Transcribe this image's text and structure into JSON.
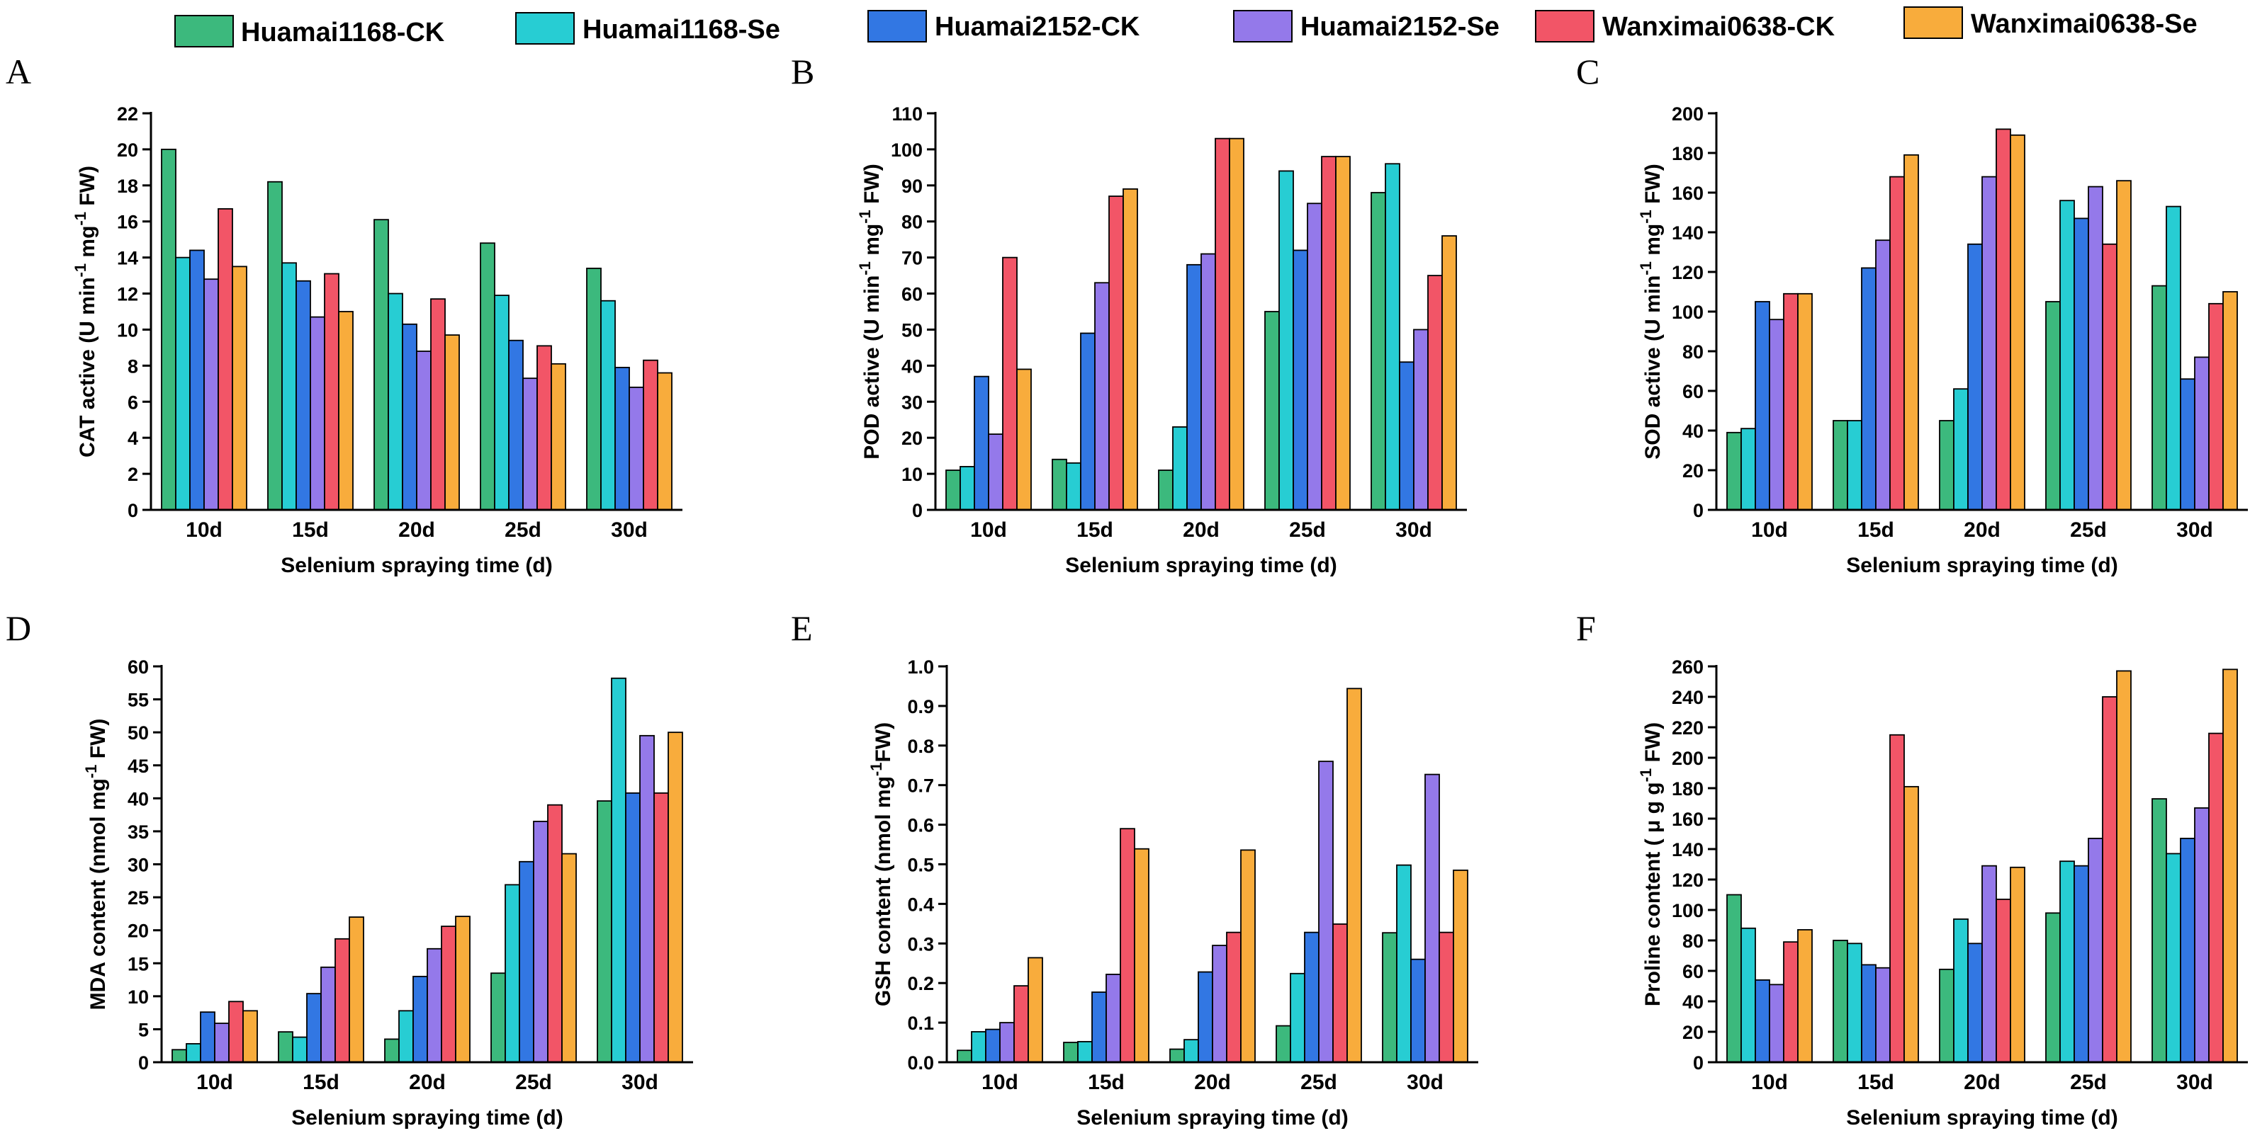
{
  "legend": [
    {
      "name": "Huamai1168-CK",
      "color": "#3cb97d"
    },
    {
      "name": "Huamai1168-Se",
      "color": "#27cdd3"
    },
    {
      "name": "Huamai2152-CK",
      "color": "#3277e3"
    },
    {
      "name": "Huamai2152-Se",
      "color": "#9479ea"
    },
    {
      "name": "Wanximai0638-CK",
      "color": "#f25567"
    },
    {
      "name": "Wanximai0638-Se",
      "color": "#f8ac3c"
    }
  ],
  "chart_data": [
    {
      "panel": "A",
      "type": "bar",
      "categories": [
        "10d",
        "15d",
        "20d",
        "25d",
        "30d"
      ],
      "xlabel": "Selenium spraying time (d)",
      "ylabel": {
        "pre": "CAT active (U min",
        "sup1": "-1",
        "mid": " mg",
        "sup2": "-1",
        "post": " FW)"
      },
      "ylim": [
        0,
        22
      ],
      "ystep": 2,
      "yticks": [
        "0",
        "2",
        "4",
        "6",
        "8",
        "10",
        "12",
        "14",
        "16",
        "18",
        "20",
        "22"
      ],
      "series": [
        {
          "name": "Huamai1168-CK",
          "values": [
            20.0,
            18.2,
            16.1,
            14.8,
            13.4
          ]
        },
        {
          "name": "Huamai1168-Se",
          "values": [
            14.0,
            13.7,
            12.0,
            11.9,
            11.6
          ]
        },
        {
          "name": "Huamai2152-CK",
          "values": [
            14.4,
            12.7,
            10.3,
            9.4,
            7.9
          ]
        },
        {
          "name": "Huamai2152-Se",
          "values": [
            12.8,
            10.7,
            8.8,
            7.3,
            6.8
          ]
        },
        {
          "name": "Wanximai0638-CK",
          "values": [
            16.7,
            13.1,
            11.7,
            9.1,
            8.3
          ]
        },
        {
          "name": "Wanximai0638-Se",
          "values": [
            13.5,
            11.0,
            9.7,
            8.1,
            7.6
          ]
        }
      ]
    },
    {
      "panel": "B",
      "type": "bar",
      "categories": [
        "10d",
        "15d",
        "20d",
        "25d",
        "30d"
      ],
      "xlabel": "Selenium spraying time (d)",
      "ylabel": {
        "pre": "POD active (U min",
        "sup1": "-1",
        "mid": " mg",
        "sup2": "-1",
        "post": " FW)"
      },
      "ylim": [
        0,
        110
      ],
      "ystep": 10,
      "yticks": [
        "0",
        "10",
        "20",
        "30",
        "40",
        "50",
        "60",
        "70",
        "80",
        "90",
        "100",
        "110"
      ],
      "series": [
        {
          "name": "Huamai1168-CK",
          "values": [
            11,
            14,
            11,
            55,
            88
          ]
        },
        {
          "name": "Huamai1168-Se",
          "values": [
            12,
            13,
            23,
            94,
            96
          ]
        },
        {
          "name": "Huamai2152-CK",
          "values": [
            37,
            49,
            68,
            72,
            41
          ]
        },
        {
          "name": "Huamai2152-Se",
          "values": [
            21,
            63,
            71,
            85,
            50
          ]
        },
        {
          "name": "Wanximai0638-CK",
          "values": [
            70,
            87,
            103,
            98,
            65
          ]
        },
        {
          "name": "Wanximai0638-Se",
          "values": [
            39,
            89,
            103,
            98,
            76
          ]
        }
      ]
    },
    {
      "panel": "C",
      "type": "bar",
      "categories": [
        "10d",
        "15d",
        "20d",
        "25d",
        "30d"
      ],
      "xlabel": "Selenium spraying time (d)",
      "ylabel": {
        "pre": "SOD active (U min",
        "sup1": "-1",
        "mid": " mg",
        "sup2": "-1",
        "post": " FW)"
      },
      "ylim": [
        0,
        200
      ],
      "ystep": 20,
      "yticks": [
        "0",
        "20",
        "40",
        "60",
        "80",
        "100",
        "120",
        "140",
        "160",
        "180",
        "200"
      ],
      "series": [
        {
          "name": "Huamai1168-CK",
          "values": [
            39,
            45,
            45,
            105,
            113
          ]
        },
        {
          "name": "Huamai1168-Se",
          "values": [
            41,
            45,
            61,
            156,
            153
          ]
        },
        {
          "name": "Huamai2152-CK",
          "values": [
            105,
            122,
            134,
            147,
            66
          ]
        },
        {
          "name": "Huamai2152-Se",
          "values": [
            96,
            136,
            168,
            163,
            77
          ]
        },
        {
          "name": "Wanximai0638-CK",
          "values": [
            109,
            168,
            192,
            134,
            104
          ]
        },
        {
          "name": "Wanximai0638-Se",
          "values": [
            109,
            179,
            189,
            166,
            110
          ]
        }
      ]
    },
    {
      "panel": "D",
      "type": "bar",
      "categories": [
        "10d",
        "15d",
        "20d",
        "25d",
        "30d"
      ],
      "xlabel": "Selenium spraying time (d)",
      "ylabel": {
        "pre": "MDA content (nmol mg",
        "sup1": "-1",
        "mid": "",
        "sup2": "",
        "post": " FW)"
      },
      "ylim": [
        0,
        60
      ],
      "ystep": 5,
      "yticks": [
        "0",
        "5",
        "10",
        "15",
        "20",
        "25",
        "30",
        "35",
        "40",
        "45",
        "50",
        "55",
        "60"
      ],
      "series": [
        {
          "name": "Huamai1168-CK",
          "values": [
            1.9,
            4.6,
            3.5,
            13.5,
            39.6
          ]
        },
        {
          "name": "Huamai1168-Se",
          "values": [
            2.8,
            3.8,
            7.8,
            26.9,
            58.2
          ]
        },
        {
          "name": "Huamai2152-CK",
          "values": [
            7.6,
            10.4,
            13.0,
            30.4,
            40.8
          ]
        },
        {
          "name": "Huamai2152-Se",
          "values": [
            5.9,
            14.4,
            17.2,
            36.5,
            49.5
          ]
        },
        {
          "name": "Wanximai0638-CK",
          "values": [
            9.2,
            18.7,
            20.6,
            39.0,
            40.8
          ]
        },
        {
          "name": "Wanximai0638-Se",
          "values": [
            7.8,
            22.0,
            22.1,
            31.6,
            50.0
          ]
        }
      ]
    },
    {
      "panel": "E",
      "type": "bar",
      "categories": [
        "10d",
        "15d",
        "20d",
        "25d",
        "30d"
      ],
      "xlabel": "Selenium spraying time (d)",
      "ylabel": {
        "pre": "GSH content (nmol mg",
        "sup1": "-1",
        "mid": "",
        "sup2": "",
        "post": "FW)"
      },
      "ylim": [
        0,
        1.0
      ],
      "ystep": 0.1,
      "yticks": [
        "0.0",
        "0.1",
        "0.2",
        "0.3",
        "0.4",
        "0.5",
        "0.6",
        "0.7",
        "0.8",
        "0.9",
        "1.0"
      ],
      "series": [
        {
          "name": "Huamai1168-CK",
          "values": [
            0.03,
            0.05,
            0.033,
            0.092,
            0.327
          ]
        },
        {
          "name": "Huamai1168-Se",
          "values": [
            0.077,
            0.052,
            0.057,
            0.224,
            0.498
          ]
        },
        {
          "name": "Huamai2152-CK",
          "values": [
            0.083,
            0.177,
            0.228,
            0.328,
            0.26
          ]
        },
        {
          "name": "Huamai2152-Se",
          "values": [
            0.1,
            0.222,
            0.295,
            0.76,
            0.727
          ]
        },
        {
          "name": "Wanximai0638-CK",
          "values": [
            0.193,
            0.59,
            0.328,
            0.349,
            0.328
          ]
        },
        {
          "name": "Wanximai0638-Se",
          "values": [
            0.264,
            0.539,
            0.536,
            0.944,
            0.485
          ]
        }
      ]
    },
    {
      "panel": "F",
      "type": "bar",
      "categories": [
        "10d",
        "15d",
        "20d",
        "25d",
        "30d"
      ],
      "xlabel": "Selenium spraying time (d)",
      "ylabel": {
        "pre": "Proline content ( μ g g",
        "sup1": "-1",
        "mid": "",
        "sup2": "",
        "post": " FW)"
      },
      "ylim": [
        0,
        260
      ],
      "ystep": 20,
      "yticks": [
        "0",
        "20",
        "40",
        "60",
        "80",
        "100",
        "120",
        "140",
        "160",
        "180",
        "200",
        "220",
        "240",
        "260"
      ],
      "series": [
        {
          "name": "Huamai1168-CK",
          "values": [
            110,
            80,
            61,
            98,
            173
          ]
        },
        {
          "name": "Huamai1168-Se",
          "values": [
            88,
            78,
            94,
            132,
            137
          ]
        },
        {
          "name": "Huamai2152-CK",
          "values": [
            54,
            64,
            78,
            129,
            147
          ]
        },
        {
          "name": "Huamai2152-Se",
          "values": [
            51,
            62,
            129,
            147,
            167
          ]
        },
        {
          "name": "Wanximai0638-CK",
          "values": [
            79,
            215,
            107,
            240,
            216
          ]
        },
        {
          "name": "Wanximai0638-Se",
          "values": [
            87,
            181,
            128,
            257,
            258
          ]
        }
      ]
    }
  ]
}
